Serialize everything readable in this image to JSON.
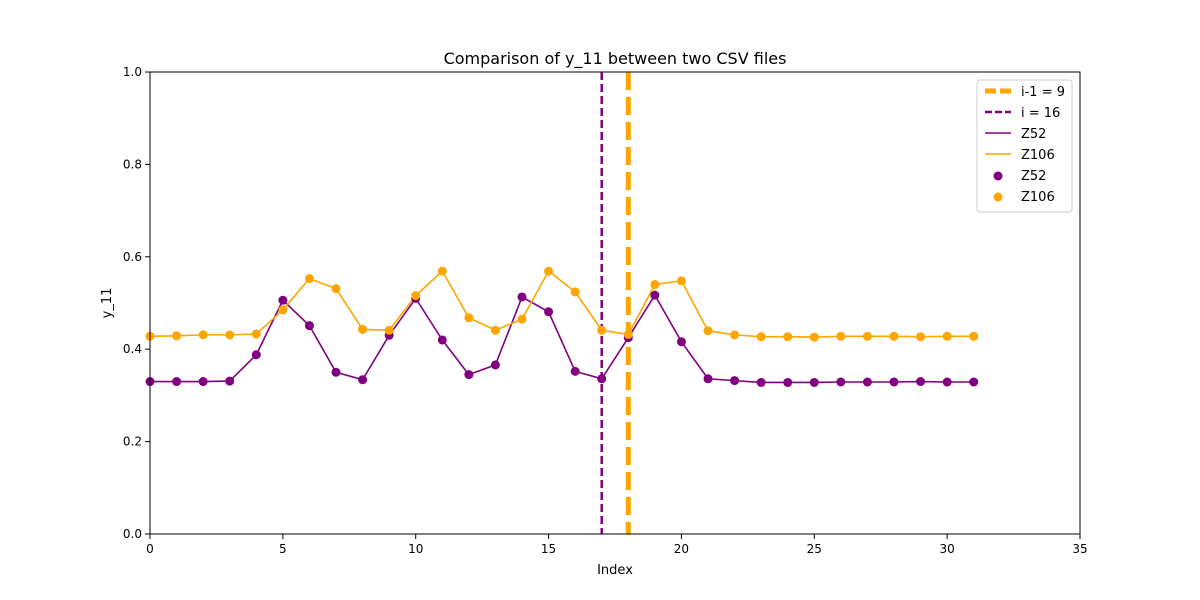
{
  "chart_data": {
    "type": "line",
    "title": "Comparison of y_11 between two CSV files",
    "xlabel": "Index",
    "ylabel": "y_11",
    "xlim": [
      0,
      35
    ],
    "ylim": [
      0,
      1
    ],
    "xticks": [
      0,
      5,
      10,
      15,
      20,
      25,
      30,
      35
    ],
    "yticks": [
      0.0,
      0.2,
      0.4,
      0.6,
      0.8,
      1.0
    ],
    "xtick_labels": [
      "0",
      "5",
      "10",
      "15",
      "20",
      "25",
      "30",
      "35"
    ],
    "ytick_labels": [
      "0.0",
      "0.2",
      "0.4",
      "0.6",
      "0.8",
      "1.0"
    ],
    "grid": false,
    "legend_position": "top-right",
    "vlines": [
      {
        "label": "i-1 = 9",
        "x": 18,
        "color": "#ffa500",
        "style": "dashed",
        "weight": "thick"
      },
      {
        "label": "i = 16",
        "x": 17,
        "color": "#800080",
        "style": "dashed",
        "weight": "thin"
      }
    ],
    "x": [
      0,
      1,
      2,
      3,
      4,
      5,
      6,
      7,
      8,
      9,
      10,
      11,
      12,
      13,
      14,
      15,
      16,
      17,
      18,
      19,
      20,
      21,
      22,
      23,
      24,
      25,
      26,
      27,
      28,
      29,
      30,
      31
    ],
    "series": [
      {
        "name": "Z52",
        "color": "#800080",
        "values": [
          0.33,
          0.33,
          0.33,
          0.331,
          0.388,
          0.506,
          0.451,
          0.35,
          0.334,
          0.43,
          0.51,
          0.42,
          0.345,
          0.366,
          0.513,
          0.481,
          0.352,
          0.336,
          0.425,
          0.517,
          0.416,
          0.336,
          0.332,
          0.328,
          0.328,
          0.328,
          0.329,
          0.329,
          0.329,
          0.33,
          0.329,
          0.329
        ]
      },
      {
        "name": "Z106",
        "color": "#ffa500",
        "values": [
          0.428,
          0.429,
          0.431,
          0.431,
          0.433,
          0.485,
          0.553,
          0.531,
          0.443,
          0.441,
          0.516,
          0.569,
          0.468,
          0.441,
          0.465,
          0.569,
          0.524,
          0.441,
          0.432,
          0.54,
          0.548,
          0.44,
          0.431,
          0.427,
          0.427,
          0.426,
          0.428,
          0.428,
          0.428,
          0.427,
          0.428,
          0.428
        ]
      }
    ]
  }
}
